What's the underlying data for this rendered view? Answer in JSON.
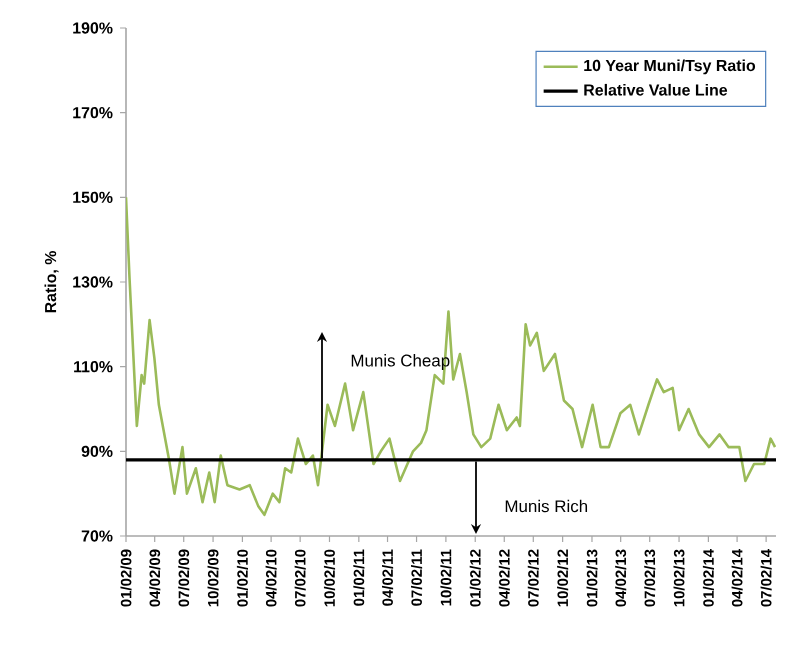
{
  "chart_data": {
    "type": "line",
    "xlabel": null,
    "ylabel": "Ratio, %",
    "xlim": [
      "2009-01-02",
      "2014-08-02"
    ],
    "xticks": [
      {
        "value": "2009-01-02",
        "label": "01/02/09"
      },
      {
        "value": "2009-04-02",
        "label": "04/02/09"
      },
      {
        "value": "2009-07-02",
        "label": "07/02/09"
      },
      {
        "value": "2009-10-02",
        "label": "10/02/09"
      },
      {
        "value": "2010-01-02",
        "label": "01/02/10"
      },
      {
        "value": "2010-04-02",
        "label": "04/02/10"
      },
      {
        "value": "2010-07-02",
        "label": "07/02/10"
      },
      {
        "value": "2010-10-02",
        "label": "10/02/10"
      },
      {
        "value": "2011-01-02",
        "label": "01/02/11"
      },
      {
        "value": "2011-04-02",
        "label": "04/02/11"
      },
      {
        "value": "2011-07-02",
        "label": "07/02/11"
      },
      {
        "value": "2011-10-02",
        "label": "10/02/11"
      },
      {
        "value": "2012-01-02",
        "label": "01/02/12"
      },
      {
        "value": "2012-04-02",
        "label": "04/02/12"
      },
      {
        "value": "2012-07-02",
        "label": "07/02/12"
      },
      {
        "value": "2012-10-02",
        "label": "10/02/12"
      },
      {
        "value": "2013-01-02",
        "label": "01/02/13"
      },
      {
        "value": "2013-04-02",
        "label": "04/02/13"
      },
      {
        "value": "2013-07-02",
        "label": "07/02/13"
      },
      {
        "value": "2013-10-02",
        "label": "10/02/13"
      },
      {
        "value": "2014-01-02",
        "label": "01/02/14"
      },
      {
        "value": "2014-04-02",
        "label": "04/02/14"
      },
      {
        "value": "2014-07-02",
        "label": "07/02/14"
      }
    ],
    "ylim": [
      70,
      190
    ],
    "yticks": [
      {
        "value": 70,
        "label": "70%"
      },
      {
        "value": 90,
        "label": "90%"
      },
      {
        "value": 110,
        "label": "110%"
      },
      {
        "value": 130,
        "label": "130%"
      },
      {
        "value": 150,
        "label": "150%"
      },
      {
        "value": 170,
        "label": "170%"
      },
      {
        "value": 190,
        "label": "190%"
      }
    ],
    "grid": false,
    "legend": "top right",
    "marker": "none",
    "line_style": "solid",
    "series": [
      {
        "name": "10 Year Muni/Tsy Ratio",
        "color": "#9bbb59",
        "x": [
          "2009-01-02",
          "2009-01-13",
          "2009-02-05",
          "2009-02-20",
          "2009-02-28",
          "2009-03-17",
          "2009-04-01",
          "2009-04-15",
          "2009-05-17",
          "2009-06-03",
          "2009-06-28",
          "2009-07-12",
          "2009-08-09",
          "2009-08-30",
          "2009-09-20",
          "2009-10-07",
          "2009-10-26",
          "2009-11-16",
          "2009-12-24",
          "2010-01-25",
          "2010-02-21",
          "2010-03-12",
          "2010-04-07",
          "2010-04-28",
          "2010-05-16",
          "2010-06-04",
          "2010-06-25",
          "2010-07-20",
          "2010-08-11",
          "2010-08-27",
          "2010-09-26",
          "2010-10-19",
          "2010-11-20",
          "2010-12-15",
          "2011-01-16",
          "2011-02-17",
          "2011-03-12",
          "2011-04-08",
          "2011-05-11",
          "2011-06-21",
          "2011-07-16",
          "2011-08-02",
          "2011-08-28",
          "2011-09-24",
          "2011-10-10",
          "2011-10-25",
          "2011-11-15",
          "2011-12-06",
          "2011-12-27",
          "2012-01-21",
          "2012-02-18",
          "2012-03-15",
          "2012-04-10",
          "2012-05-11",
          "2012-05-21",
          "2012-06-08",
          "2012-06-22",
          "2012-07-13",
          "2012-08-04",
          "2012-09-08",
          "2012-10-06",
          "2012-11-02",
          "2012-12-02",
          "2013-01-04",
          "2013-01-29",
          "2013-02-24",
          "2013-04-01",
          "2013-05-02",
          "2013-05-29",
          "2013-06-28",
          "2013-07-25",
          "2013-08-15",
          "2013-09-12",
          "2013-10-02",
          "2013-11-01",
          "2013-12-04",
          "2014-01-04",
          "2014-02-06",
          "2014-03-06",
          "2014-04-09",
          "2014-04-28",
          "2014-05-25",
          "2014-06-26",
          "2014-07-16",
          "2014-07-30"
        ],
        "values": [
          150,
          131,
          96,
          108,
          106,
          121,
          112,
          101,
          88,
          80,
          91,
          80,
          86,
          78,
          85,
          78,
          89,
          82,
          81,
          82,
          77,
          75,
          80,
          78,
          86,
          85,
          93,
          87,
          89,
          82,
          101,
          96,
          106,
          95,
          104,
          87,
          90,
          93,
          83,
          90,
          92,
          95,
          108,
          106,
          123,
          107,
          113,
          104,
          94,
          91,
          93,
          101,
          95,
          98,
          96,
          120,
          115,
          118,
          109,
          113,
          102,
          100,
          91,
          101,
          91,
          91,
          99,
          101,
          94,
          101,
          107,
          104,
          105,
          95,
          100,
          94,
          91,
          94,
          91,
          91,
          83,
          87,
          87,
          93,
          91
        ]
      }
    ],
    "ref_lines": [
      {
        "axis": "y",
        "value": 88,
        "label": "Relative Value Line",
        "color": "#000000"
      }
    ],
    "annotations": [
      "Munis Cheap",
      "Munis Rich"
    ]
  }
}
